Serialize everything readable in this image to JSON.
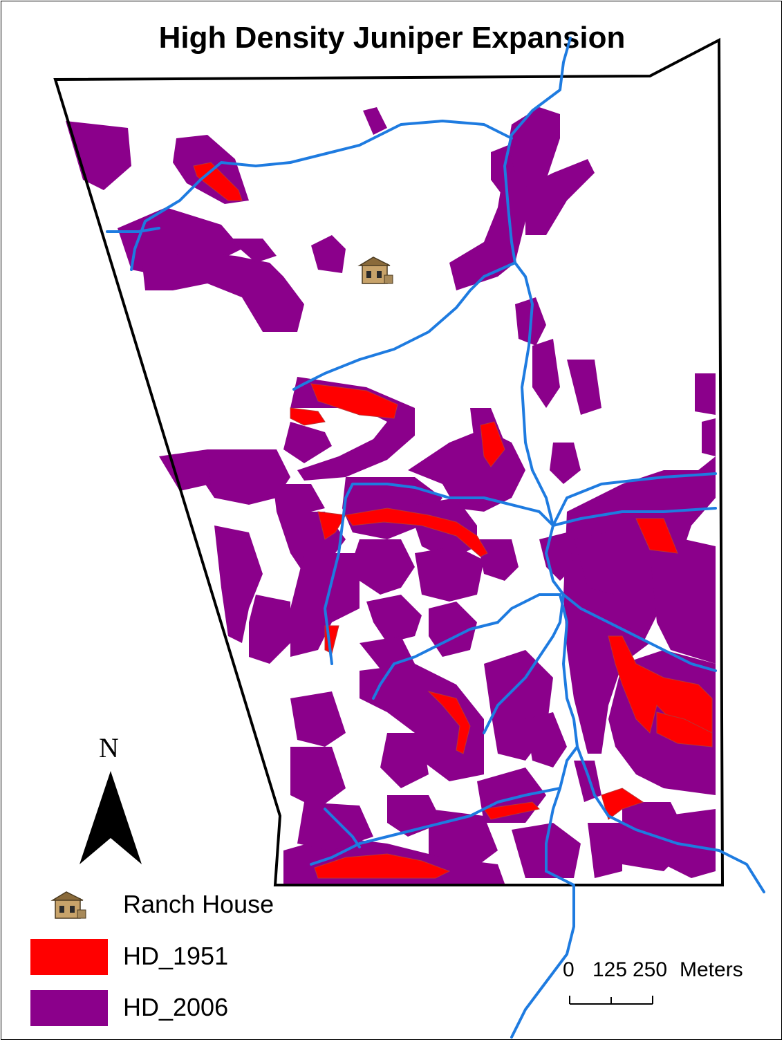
{
  "map": {
    "title": "High Density Juniper Expansion",
    "colors": {
      "hd_1951": "#ff0000",
      "hd_2006": "#8b008b",
      "streams": "#1e7be0",
      "boundary": "#000000"
    }
  },
  "north_arrow": {
    "label": "N"
  },
  "legend": {
    "ranch_house": {
      "label": "Ranch House",
      "icon": "house-icon"
    },
    "hd_1951": {
      "label": "HD_1951"
    },
    "hd_2006": {
      "label": "HD_2006"
    }
  },
  "scale_bar": {
    "ticks": [
      "0",
      "125",
      "250"
    ],
    "unit": "Meters"
  }
}
